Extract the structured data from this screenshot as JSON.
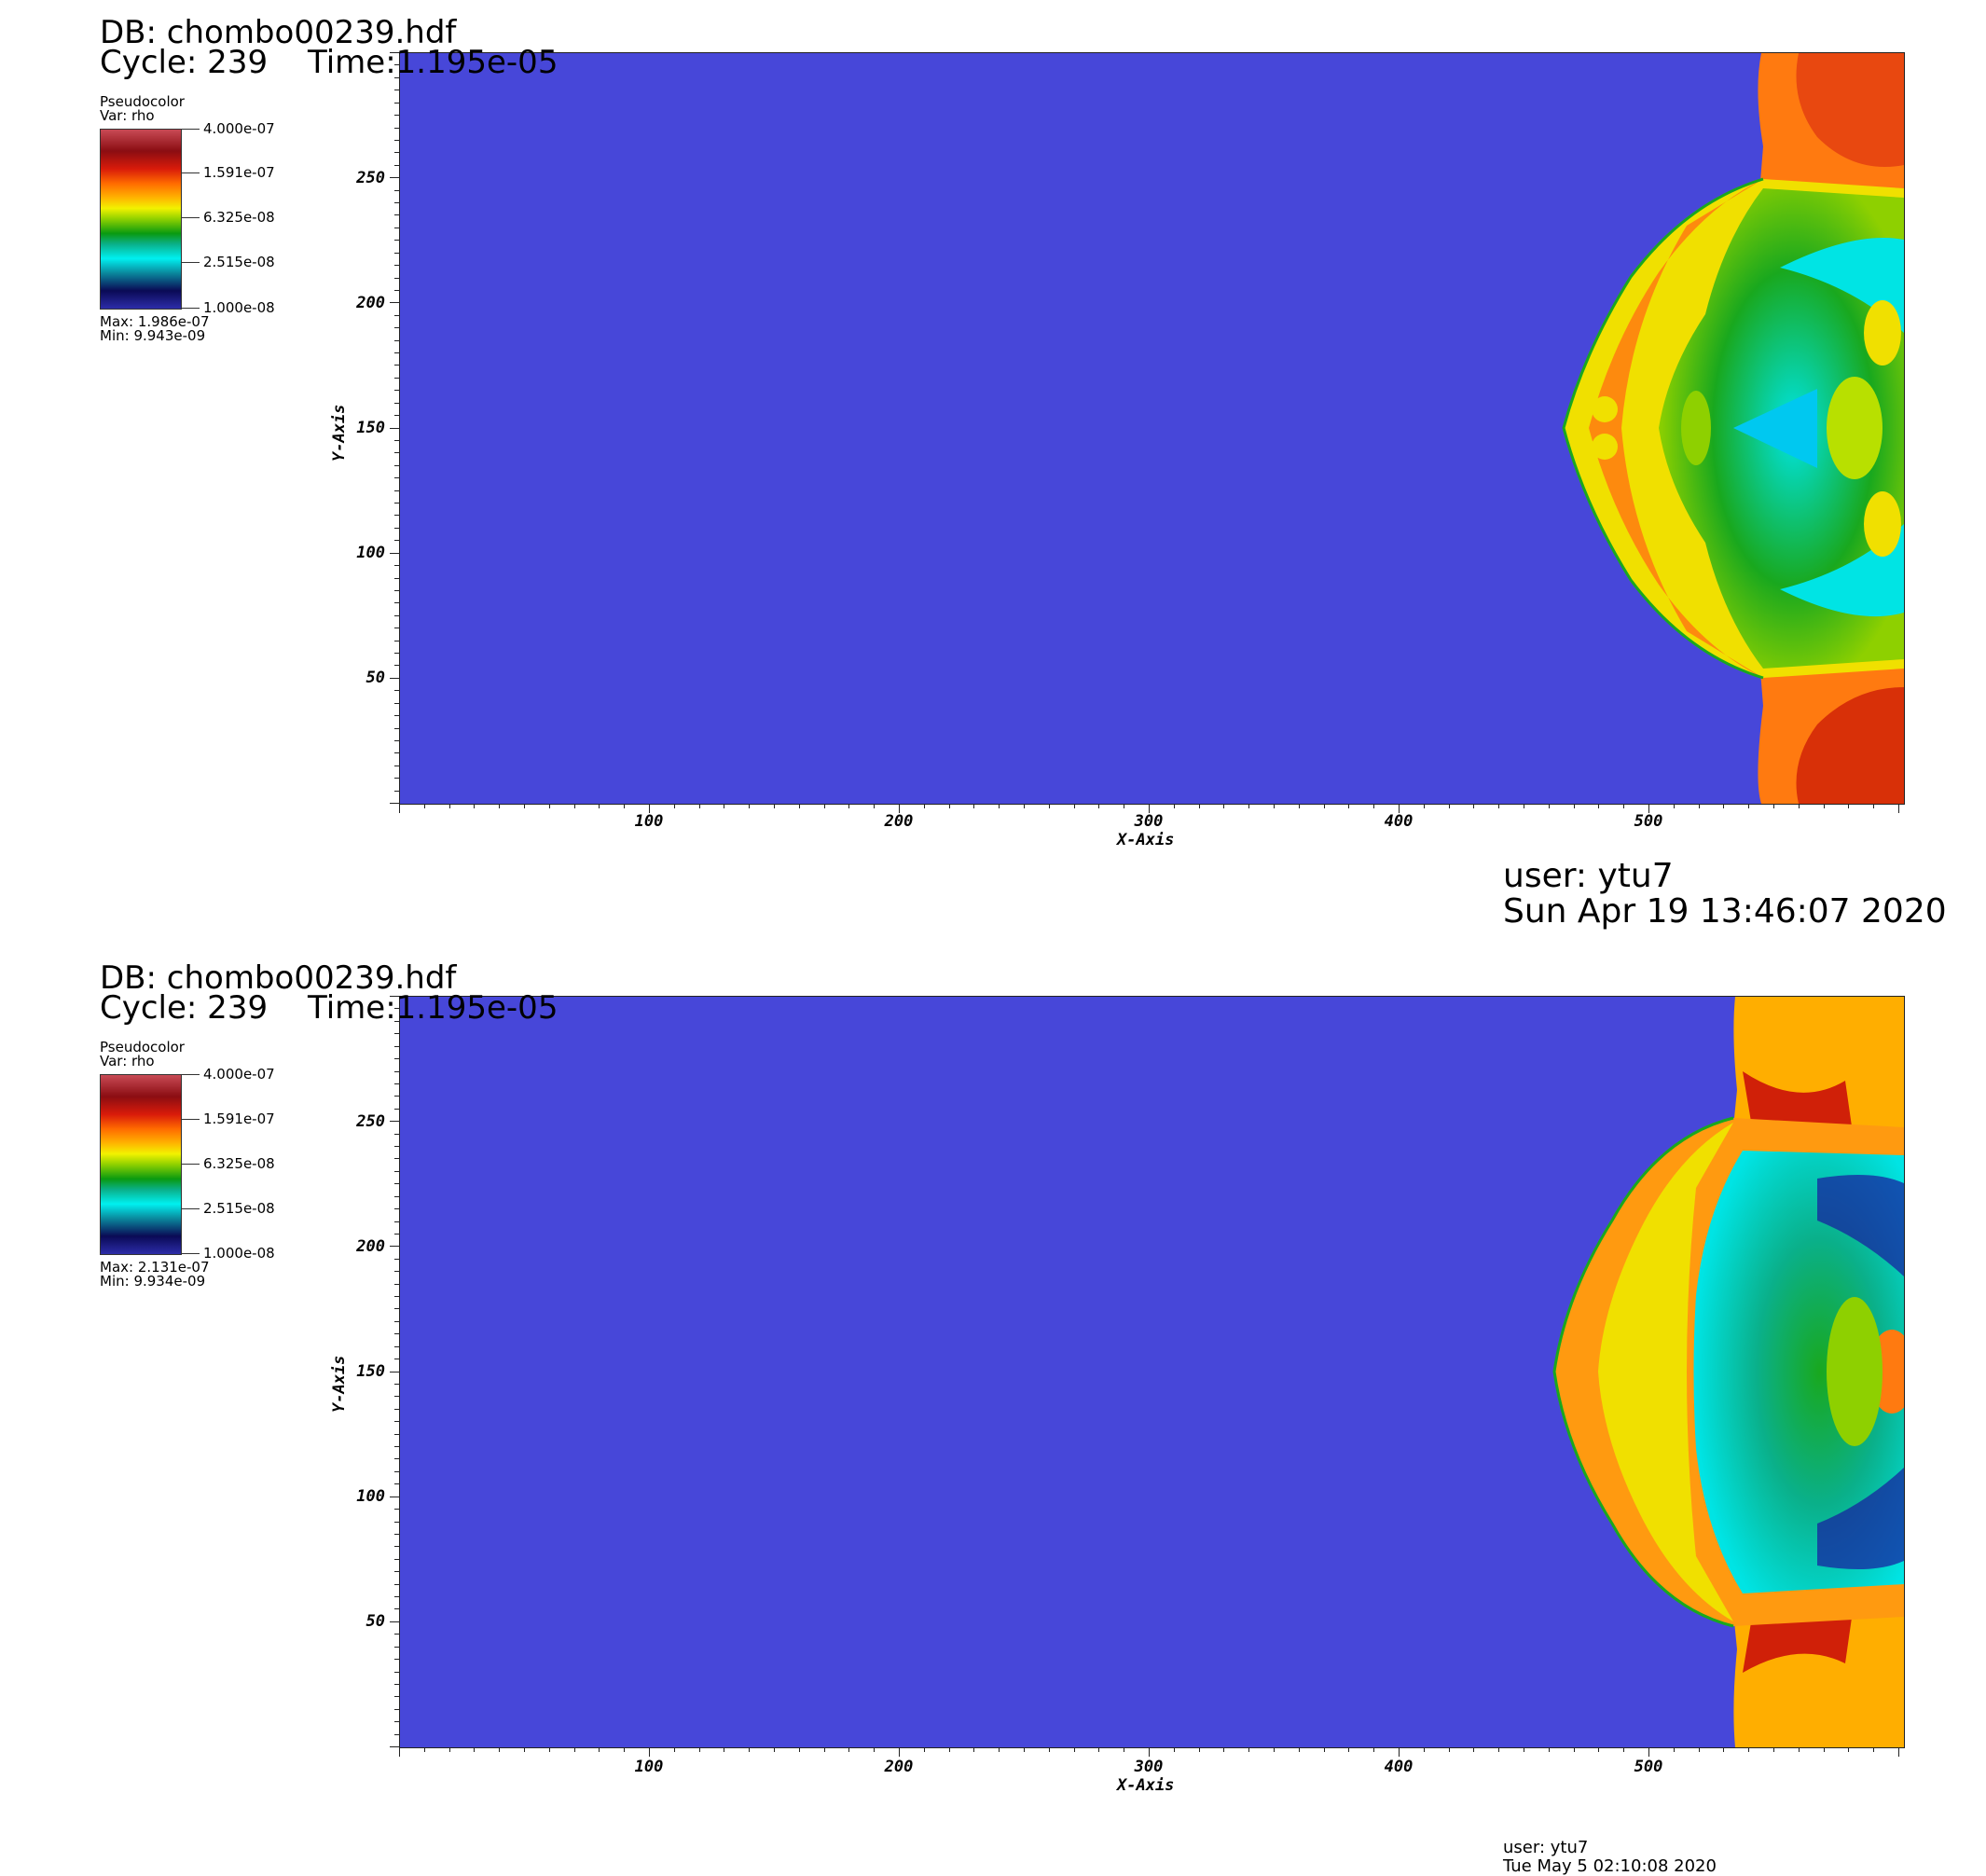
{
  "panels": [
    {
      "db": "DB: chombo00239.hdf",
      "cycle": "Cycle: 239",
      "time": "Time:1.195e-05",
      "legend": {
        "title": "Pseudocolor",
        "var": "Var: rho",
        "ticks": [
          "4.000e-07",
          "1.591e-07",
          "6.325e-08",
          "2.515e-08",
          "1.000e-08"
        ],
        "max": "Max:  1.986e-07",
        "min": "Min:  9.943e-09"
      },
      "y_ticks": [
        "250",
        "200",
        "150",
        "100",
        "50"
      ],
      "x_ticks": [
        "100",
        "200",
        "300",
        "400",
        "500"
      ],
      "x_axis_title": "X-Axis",
      "y_axis_title": "Y-Axis",
      "user": "user: ytu7",
      "timestamp": "Sun Apr 19 13:46:07 2020"
    },
    {
      "db": "DB: chombo00239.hdf",
      "cycle": "Cycle: 239",
      "time": "Time:1.195e-05",
      "legend": {
        "title": "Pseudocolor",
        "var": "Var: rho",
        "ticks": [
          "4.000e-07",
          "1.591e-07",
          "6.325e-08",
          "2.515e-08",
          "1.000e-08"
        ],
        "max": "Max:  2.131e-07",
        "min": "Min:  9.934e-09"
      },
      "y_ticks": [
        "250",
        "200",
        "150",
        "100",
        "50"
      ],
      "x_ticks": [
        "100",
        "200",
        "300",
        "400",
        "500"
      ],
      "x_axis_title": "X-Axis",
      "y_axis_title": "Y-Axis",
      "user": "user: ytu7",
      "timestamp": "Tue May  5 02:10:08 2020"
    }
  ],
  "colors": {
    "background_flow": "#4747d9",
    "shock_orange": "#ff7a10",
    "shock_yellow": "#f0e000",
    "shock_green": "#19a81e",
    "shock_cyan": "#00e4e4",
    "shock_red": "#d02008"
  }
}
